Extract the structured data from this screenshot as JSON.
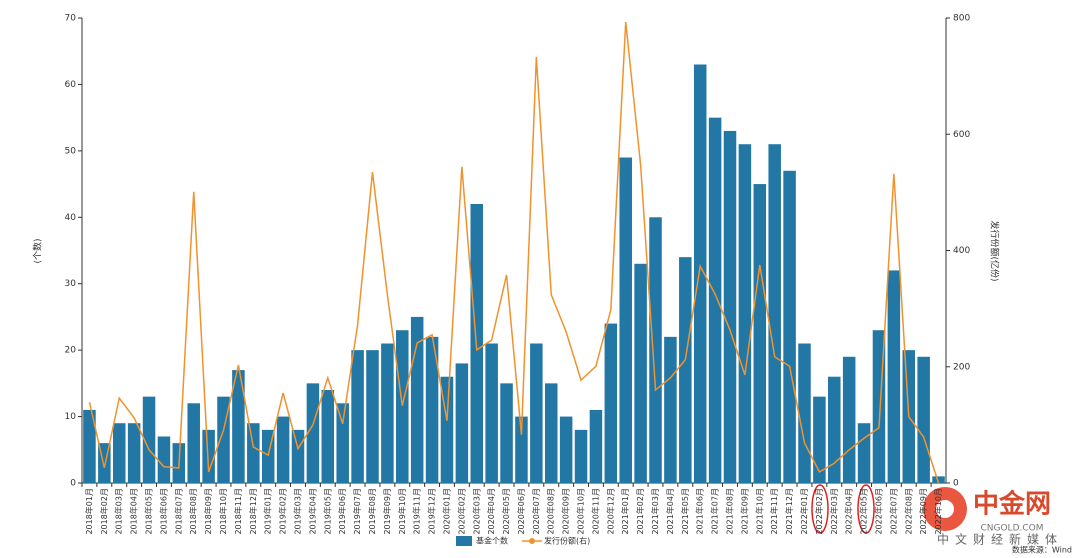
{
  "chart_data": {
    "type": "bar_line",
    "categories": [
      "2018年01月",
      "2018年02月",
      "2018年03月",
      "2018年04月",
      "2018年05月",
      "2018年06月",
      "2018年07月",
      "2018年08月",
      "2018年09月",
      "2018年10月",
      "2018年11月",
      "2018年12月",
      "2019年01月",
      "2019年02月",
      "2019年03月",
      "2019年04月",
      "2019年05月",
      "2019年06月",
      "2019年07月",
      "2019年08月",
      "2019年09月",
      "2019年10月",
      "2019年11月",
      "2019年12月",
      "2020年01月",
      "2020年02月",
      "2020年03月",
      "2020年04月",
      "2020年05月",
      "2020年06月",
      "2020年07月",
      "2020年08月",
      "2020年09月",
      "2020年10月",
      "2020年11月",
      "2020年12月",
      "2021年01月",
      "2021年02月",
      "2021年03月",
      "2021年04月",
      "2021年05月",
      "2021年06月",
      "2021年07月",
      "2021年08月",
      "2021年09月",
      "2021年10月",
      "2021年11月",
      "2021年12月",
      "2022年01月",
      "2022年02月",
      "2022年03月",
      "2022年04月",
      "2022年05月",
      "2022年06月",
      "2022年07月",
      "2022年08月",
      "2022年09月",
      "2022年10月"
    ],
    "series": [
      {
        "name": "基金个数",
        "type": "bar",
        "color": "#2277a5",
        "values": [
          11,
          6,
          9,
          9,
          13,
          7,
          6,
          12,
          8,
          13,
          17,
          9,
          8,
          10,
          8,
          15,
          14,
          12,
          20,
          20,
          21,
          23,
          25,
          22,
          16,
          18,
          42,
          21,
          15,
          10,
          21,
          15,
          10,
          8,
          11,
          24,
          49,
          33,
          40,
          22,
          34,
          63,
          55,
          53,
          51,
          45,
          51,
          47,
          21,
          13,
          16,
          19,
          9,
          23,
          32,
          20,
          19,
          1
        ]
      },
      {
        "name": "发行份额(右)",
        "type": "line",
        "axis": "y2",
        "color": "#f0922e",
        "values": [
          139,
          26,
          146,
          112,
          57,
          28,
          26,
          501,
          19,
          91,
          203,
          62,
          48,
          155,
          59,
          100,
          181,
          102,
          272,
          535,
          324,
          133,
          241,
          255,
          107,
          544,
          229,
          246,
          358,
          83,
          733,
          324,
          260,
          177,
          201,
          298,
          793,
          547,
          160,
          181,
          212,
          373,
          325,
          263,
          186,
          375,
          217,
          201,
          69,
          19,
          34,
          57,
          77,
          95,
          532,
          114,
          79,
          0
        ]
      }
    ],
    "ylabel": "(个数)",
    "y2label": "发行份额(亿份)",
    "ylim": [
      0,
      70
    ],
    "yticks": [
      0,
      10,
      20,
      30,
      40,
      50,
      60,
      70
    ],
    "y2lim": [
      0,
      800
    ],
    "y2ticks": [
      0,
      200,
      400,
      600,
      800
    ],
    "legend": "bottom",
    "source": "数据来源：Wind",
    "watermark": {
      "name": "中金网",
      "url": "CNGOLD.COM",
      "slogan": "中文财经新媒体"
    }
  }
}
